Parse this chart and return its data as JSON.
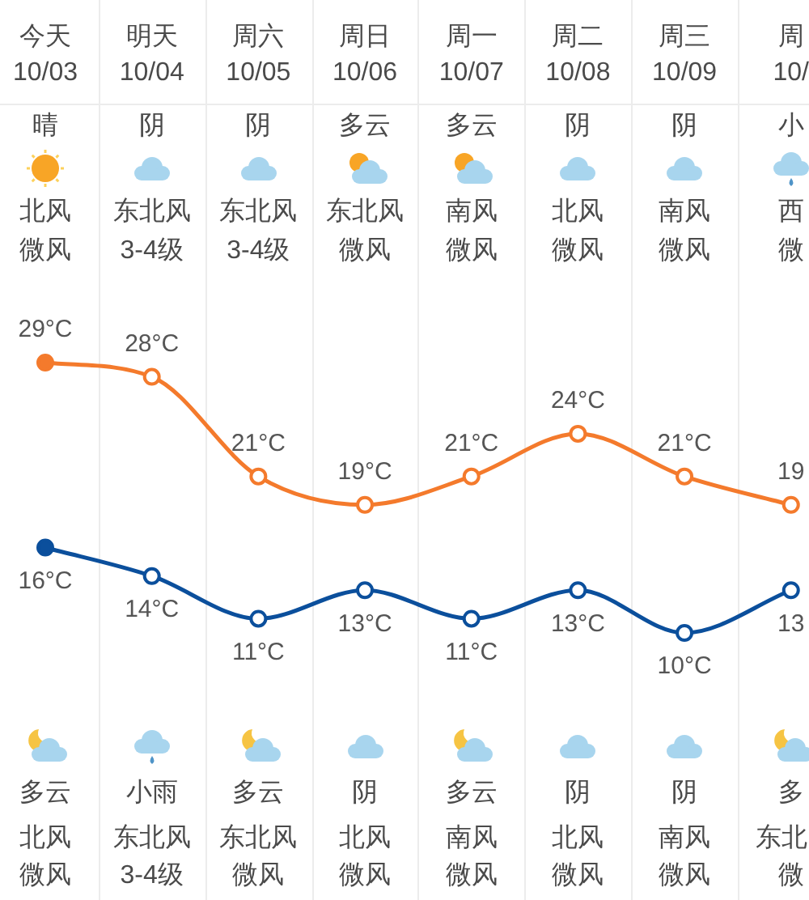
{
  "chart_data": {
    "type": "line",
    "categories": [
      "今天\n10/03",
      "明天\n10/04",
      "周六\n10/05",
      "周日\n10/06",
      "周一\n10/07",
      "周二\n10/08",
      "周三\n10/09",
      "周\n10/"
    ],
    "series": [
      {
        "color": "#f47a2c",
        "values": [
          29,
          28,
          21,
          19,
          21,
          24,
          21,
          19
        ],
        "value_labels": [
          "29°C",
          "28°C",
          "21°C",
          "19°C",
          "21°C",
          "24°C",
          "21°C",
          "19"
        ]
      },
      {
        "color": "#0b4f9c",
        "values": [
          16,
          14,
          11,
          13,
          11,
          13,
          10,
          13
        ],
        "value_labels": [
          "16°C",
          "14°C",
          "11°C",
          "13°C",
          "11°C",
          "13°C",
          "10°C",
          "13"
        ]
      }
    ],
    "tick_labels": "x",
    "grid": "x",
    "marker": "circle",
    "line_style": "solid",
    "annotations": [
      "晴",
      "阴",
      "阴",
      "多云",
      "多云",
      "阴",
      "阴",
      "小",
      "北风",
      "东北风",
      "东北风",
      "东北风",
      "南风",
      "北风",
      "南风",
      "西",
      "微风",
      "3-4级",
      "3-4级",
      "微风",
      "微风",
      "微风",
      "微风",
      "微",
      "多云",
      "小雨",
      "多云",
      "阴",
      "多云",
      "阴",
      "阴",
      "多",
      "北风",
      "东北风",
      "东北风",
      "北风",
      "南风",
      "北风",
      "南风",
      "东北",
      "微风",
      "3-4级",
      "微风",
      "微风",
      "微风",
      "微风",
      "微风",
      "微"
    ]
  }
}
